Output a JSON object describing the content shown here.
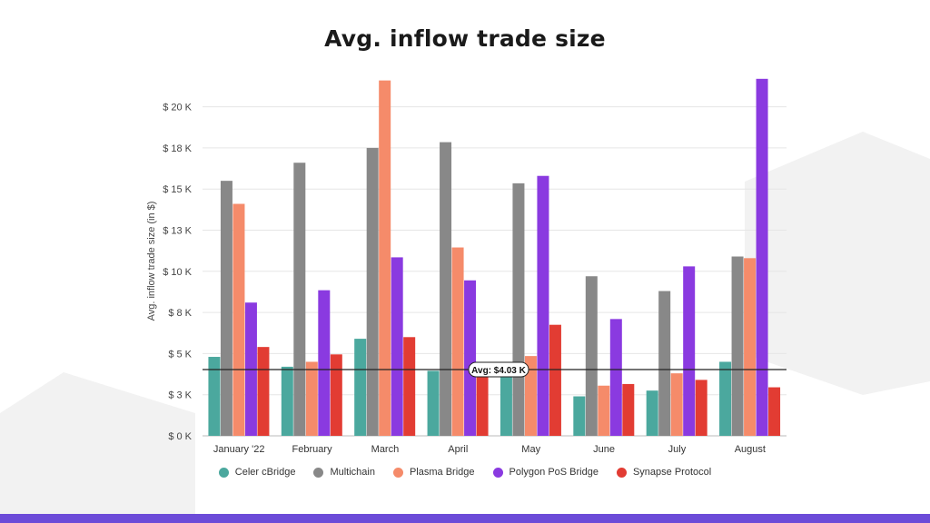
{
  "chart_data": {
    "type": "bar",
    "title": "Avg. inflow trade size",
    "ylabel": "Avg. inflow trade size (in $)",
    "xlabel": "",
    "categories": [
      "January '22",
      "February",
      "March",
      "April",
      "May",
      "June",
      "July",
      "August"
    ],
    "y_ticks": [
      0,
      2500,
      5000,
      7500,
      10000,
      12500,
      15000,
      17500,
      20000
    ],
    "y_tick_labels": [
      "$ 0 K",
      "$ 3 K",
      "$ 5 K",
      "$ 8 K",
      "$ 10 K",
      "$ 13 K",
      "$ 15 K",
      "$ 18 K",
      "$ 20 K"
    ],
    "ylim": [
      0,
      21800
    ],
    "grid": true,
    "legend_position": "bottom",
    "series": [
      {
        "name": "Celer cBridge",
        "color": "#4ba89e",
        "values": [
          4800,
          4200,
          5900,
          3950,
          3900,
          2400,
          2750,
          4500
        ]
      },
      {
        "name": "Multichain",
        "color": "#888888",
        "values": [
          15500,
          16600,
          17500,
          17850,
          15350,
          9700,
          8800,
          10900
        ]
      },
      {
        "name": "Plasma Bridge",
        "color": "#f58b6a",
        "values": [
          14100,
          4500,
          21600,
          11450,
          4850,
          3050,
          3800,
          10800
        ]
      },
      {
        "name": "Polygon PoS Bridge",
        "color": "#8a3ae0",
        "values": [
          8100,
          8850,
          10850,
          9450,
          15800,
          7100,
          10300,
          21700
        ]
      },
      {
        "name": "Synapse Protocol",
        "color": "#e23c33",
        "values": [
          5400,
          4950,
          6000,
          4000,
          6750,
          3150,
          3400,
          2950
        ]
      }
    ],
    "reference_line": {
      "value": 4030,
      "label": "Avg: $4.03 K"
    }
  }
}
